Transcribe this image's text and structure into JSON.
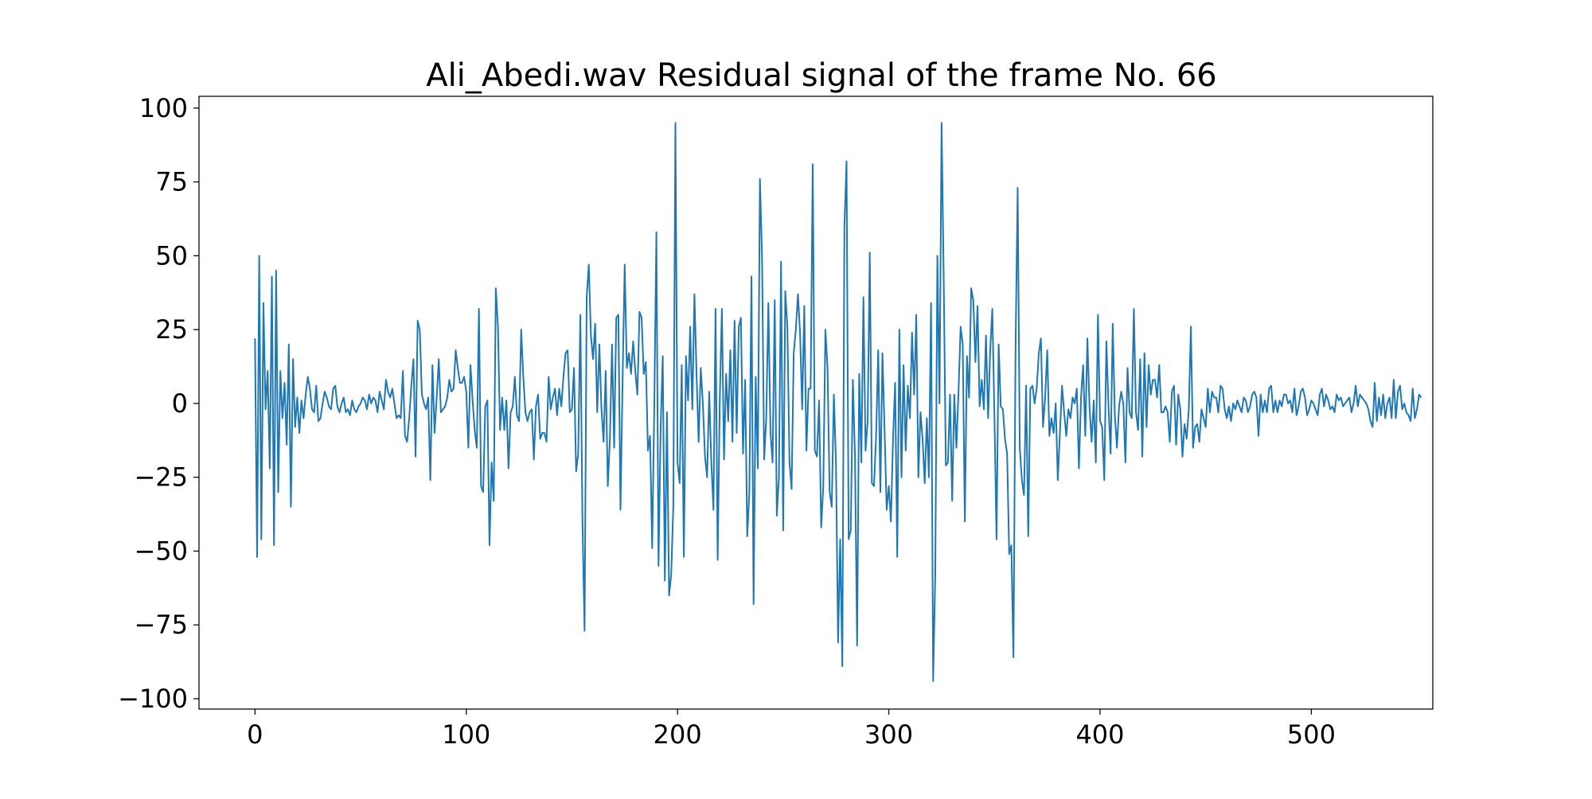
{
  "chart_data": {
    "type": "line",
    "title": "Ali_Abedi.wav Residual signal of the frame No. 66",
    "xlabel": "",
    "ylabel": "",
    "xlim": [
      -26.5,
      557.5
    ],
    "ylim": [
      -103.5,
      104
    ],
    "grid": false,
    "legend": "none",
    "x_ticks": [
      0,
      100,
      200,
      300,
      400,
      500
    ],
    "x_tick_labels": [
      "0",
      "100",
      "200",
      "300",
      "400",
      "500"
    ],
    "y_ticks": [
      -100,
      -75,
      -50,
      -25,
      0,
      25,
      50,
      75,
      100
    ],
    "y_tick_labels": [
      "−100",
      "−75",
      "−50",
      "−25",
      "0",
      "25",
      "50",
      "75",
      "100"
    ],
    "series": [
      {
        "color": "#1f77b4",
        "x_start": 0,
        "x_step": 1,
        "values": [
          22,
          -52,
          50,
          -46,
          34,
          -2,
          11,
          -22,
          43,
          -48,
          45,
          -30,
          11,
          -5,
          7,
          -14,
          20,
          -35,
          15,
          -8,
          2,
          -10,
          1,
          -5,
          3,
          9,
          5,
          -2,
          -3,
          6,
          -6,
          -5,
          0,
          4,
          2,
          -1,
          -2,
          5,
          6,
          -1,
          -3,
          0,
          2,
          -3,
          -2,
          -4,
          1,
          -2,
          -3,
          -1,
          0,
          2,
          1,
          -2,
          3,
          0,
          2,
          1,
          -3,
          4,
          1,
          -2,
          8,
          4,
          2,
          5,
          0,
          -5,
          -4,
          -5,
          11,
          -11,
          -13,
          -5,
          6,
          15,
          -18,
          28,
          25,
          3,
          0,
          -2,
          2,
          -26,
          13,
          -10,
          2,
          15,
          -3,
          -2,
          -1,
          2,
          8,
          4,
          5,
          18,
          12,
          7,
          7,
          9,
          4,
          -15,
          13,
          1,
          -9,
          -15,
          32,
          -28,
          -30,
          -1,
          1,
          -48,
          -20,
          -33,
          39,
          26,
          -9,
          2,
          -9,
          1,
          -22,
          -3,
          -1,
          9,
          -4,
          -6,
          25,
          9,
          -3,
          -6,
          -3,
          -2,
          -19,
          -1,
          3,
          -12,
          -10,
          -10,
          -13,
          9,
          -2,
          2,
          5,
          -4,
          5,
          -1,
          9,
          17,
          18,
          -3,
          -2,
          12,
          -23,
          -17,
          30,
          -40,
          -77,
          36,
          47,
          23,
          15,
          27,
          -3,
          20,
          -2,
          -13,
          11,
          -28,
          -12,
          20,
          -15,
          29,
          30,
          -36,
          8,
          47,
          12,
          17,
          10,
          21,
          11,
          3,
          31,
          29,
          10,
          14,
          -16,
          -11,
          -49,
          -1,
          58,
          -55,
          -9,
          16,
          -60,
          -3,
          -65,
          -58,
          -35,
          95,
          -20,
          -27,
          13,
          -52,
          16,
          1,
          26,
          -2,
          37,
          10,
          -13,
          12,
          0,
          -18,
          -25,
          4,
          -20,
          -36,
          32,
          -53,
          1,
          32,
          -19,
          10,
          -6,
          18,
          -13,
          28,
          -10,
          26,
          29,
          -17,
          8,
          -45,
          -30,
          43,
          -68,
          9,
          -22,
          76,
          50,
          -19,
          -5,
          34,
          -10,
          -20,
          35,
          -38,
          -25,
          48,
          -43,
          38,
          26,
          -20,
          -29,
          17,
          25,
          37,
          24,
          -2,
          33,
          -16,
          5,
          5,
          81,
          -16,
          -18,
          1,
          -42,
          -28,
          25,
          12,
          -30,
          -35,
          3,
          -20,
          -81,
          -46,
          -89,
          60,
          82,
          -46,
          -43,
          8,
          -18,
          -82,
          10,
          -20,
          36,
          -16,
          -6,
          51,
          -27,
          -28,
          -11,
          18,
          -30,
          17,
          -9,
          -36,
          -28,
          -40,
          -12,
          7,
          -52,
          25,
          -25,
          13,
          -16,
          6,
          -5,
          24,
          3,
          30,
          -25,
          -3,
          -12,
          -27,
          -5,
          -25,
          34,
          -94,
          -58,
          50,
          0,
          95,
          42,
          -21,
          -20,
          3,
          -33,
          3,
          -15,
          4,
          26,
          20,
          -40,
          16,
          2,
          39,
          35,
          14,
          33,
          -1,
          8,
          -2,
          23,
          -5,
          18,
          32,
          -4,
          -46,
          20,
          -1,
          -2,
          -12,
          -17,
          -51,
          -48,
          -86,
          19,
          73,
          -15,
          -26,
          -31,
          6,
          -45,
          5,
          6,
          0,
          5,
          17,
          22,
          -8,
          2,
          18,
          -11,
          -5,
          -10,
          0,
          -26,
          -10,
          6,
          -3,
          -11,
          -2,
          -5,
          2,
          0,
          5,
          -22,
          2,
          13,
          -11,
          22,
          -1,
          -13,
          1,
          -20,
          30,
          -6,
          -8,
          -26,
          21,
          -1,
          -17,
          27,
          -4,
          -15,
          -1,
          4,
          0,
          -20,
          12,
          -3,
          -5,
          32,
          -3,
          -9,
          15,
          -18,
          17,
          -8,
          13,
          3,
          8,
          8,
          2,
          13,
          -3,
          -3,
          -1,
          -3,
          -13,
          4,
          6,
          -14,
          3,
          -2,
          -18,
          -7,
          -12,
          -2,
          26,
          -15,
          -8,
          -7,
          -13,
          -2,
          -5,
          -8,
          5,
          -3,
          4,
          2,
          2,
          -3,
          6,
          5,
          -2,
          -5,
          -1,
          -6,
          0,
          -2,
          1,
          -1,
          -3,
          2,
          1,
          -3,
          -1,
          3,
          4,
          2,
          -11,
          3,
          -3,
          1,
          -3,
          5,
          6,
          -3,
          1,
          -3,
          1,
          -1,
          3,
          3,
          0,
          1,
          -3,
          5,
          -4,
          -1,
          4,
          5,
          2,
          -4,
          -2,
          1,
          0,
          -2,
          -4,
          3,
          5,
          -1,
          3,
          1,
          -2,
          -1,
          -3,
          3,
          1,
          2,
          -1,
          0,
          1,
          2,
          -3,
          0,
          6,
          -1,
          3,
          2,
          1,
          0,
          -2,
          -6,
          -8,
          7,
          -6,
          2,
          -4,
          3,
          -5,
          0,
          2,
          -5,
          8,
          -5,
          4,
          6,
          -2,
          0,
          -3,
          -4,
          -6,
          5,
          -5,
          -2,
          3,
          2
        ]
      }
    ]
  }
}
